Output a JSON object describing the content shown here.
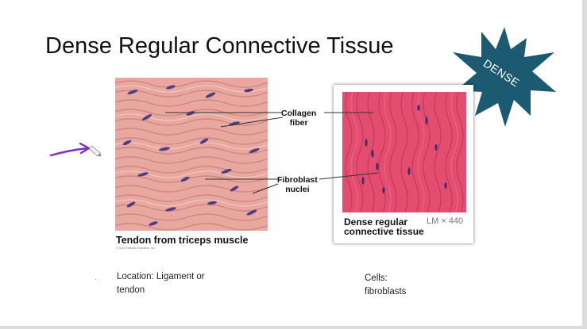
{
  "slide": {
    "title": "Dense Regular Connective Tissue",
    "badge": "DENSE",
    "badge_color": "#1b5a71",
    "figure1": {
      "caption": "Tendon from triceps muscle",
      "copyright": "© 2016 Pearson Education, Inc.",
      "tissue_color": "#e8a8a0",
      "nuclei_color": "#4d3f85"
    },
    "labels": {
      "collagen_line1": "Collagen",
      "collagen_line2": "fiber",
      "fibroblast_line1": "Fibroblast",
      "fibroblast_line2": "nuclei"
    },
    "figure2": {
      "caption_line1": "Dense regular",
      "caption_line2": "connective tissue",
      "magnification": "LM × 440",
      "tissue_color": "#e34d70"
    },
    "location_line1": "Location: Ligament or",
    "location_line2": "tendon",
    "cells_line1": "Cells:",
    "cells_line2": "fibroblasts",
    "annotation_color": "#7b2ec9"
  }
}
